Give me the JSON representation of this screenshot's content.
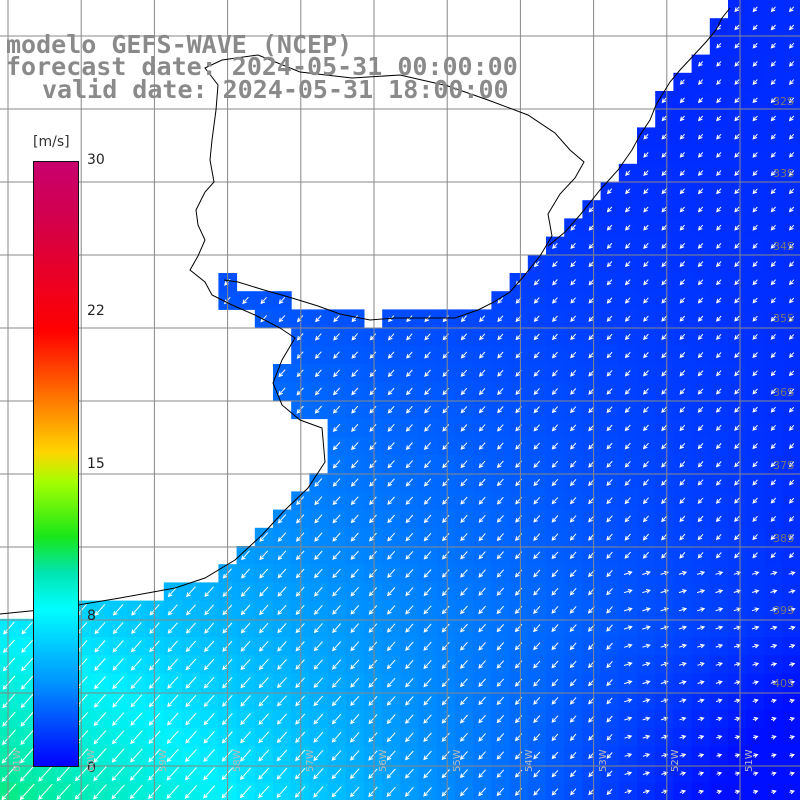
{
  "title": {
    "line1": "modelo GEFS-WAVE (NCEP)",
    "line2": "forecast date: 2024-05-31 00:00:00",
    "line3": "valid date: 2024-05-31 18:00:00"
  },
  "colorbar": {
    "unit": "[m/s]",
    "ticks": [
      {
        "label": "30",
        "value": 30
      },
      {
        "label": "22",
        "value": 22
      },
      {
        "label": "15",
        "value": 15
      },
      {
        "label": "8",
        "value": 8
      },
      {
        "label": "0",
        "value": 0
      }
    ],
    "colors": [
      "#c8006e",
      "#ff0000",
      "#ff6a00",
      "#ffd400",
      "#19e619",
      "#00ffff",
      "#0096ff",
      "#0000ff"
    ]
  },
  "latitude_labels": [
    "32S",
    "33S",
    "34S",
    "35S",
    "36S",
    "37S",
    "38S",
    "39S",
    "40S"
  ],
  "longitude_labels": [
    "61W",
    "60W",
    "59W",
    "58W",
    "57W",
    "56W",
    "55W",
    "54W",
    "53W",
    "52W",
    "51W"
  ],
  "colors": {
    "land": "#ffffff",
    "grid": "#888888",
    "coast": "#000000",
    "arrow": "#ffffff"
  }
}
